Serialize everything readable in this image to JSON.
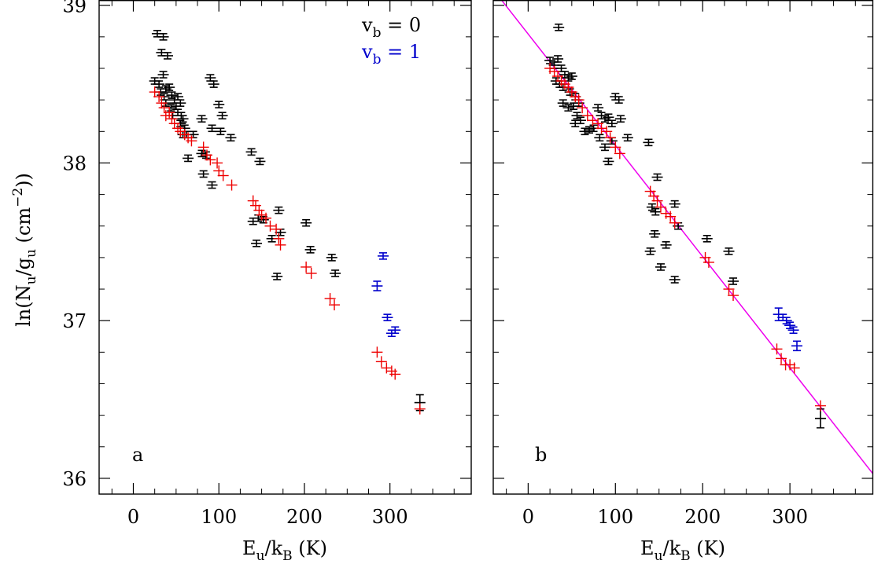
{
  "chart_data": {
    "type": "scatter",
    "panels": [
      {
        "tag": "a",
        "xlabel": "Eu/kB (K)",
        "ylabel": "ln(Nu/gu (cm−2))",
        "xlim": [
          -40,
          395
        ],
        "ylim": [
          35.9,
          39.03
        ],
        "xticks": [
          0,
          100,
          200,
          300
        ],
        "yticks": [
          36,
          37,
          38,
          39
        ],
        "legend": {
          "position": "top-right",
          "entries": [
            {
              "text": "vb = 0",
              "color": "#000000"
            },
            {
              "text": "vb = 1",
              "color": "#0000cc"
            }
          ]
        },
        "series": [
          {
            "color": "#000000",
            "points": [
              [
                28,
                38.82,
                0.01
              ],
              [
                35,
                38.8,
                0.01
              ],
              [
                33,
                38.7,
                0.01
              ],
              [
                40,
                38.68,
                0.01
              ],
              [
                25,
                38.52,
                0.01
              ],
              [
                30,
                38.5,
                0.01
              ],
              [
                35,
                38.56,
                0.01
              ],
              [
                38,
                38.47,
                0.01
              ],
              [
                42,
                38.48,
                0.01
              ],
              [
                32,
                38.45,
                0.01
              ],
              [
                36,
                38.42,
                0.01
              ],
              [
                45,
                38.43,
                0.01
              ],
              [
                48,
                38.4,
                0.01
              ],
              [
                52,
                38.42,
                0.01
              ],
              [
                55,
                38.38,
                0.01
              ],
              [
                38,
                38.38,
                0.01
              ],
              [
                44,
                38.35,
                0.01
              ],
              [
                50,
                38.36,
                0.01
              ],
              [
                46,
                38.3,
                0.01
              ],
              [
                52,
                38.32,
                0.01
              ],
              [
                56,
                38.3,
                0.01
              ],
              [
                58,
                38.28,
                0.01
              ],
              [
                55,
                38.25,
                0.01
              ],
              [
                60,
                38.22,
                0.01
              ],
              [
                62,
                38.18,
                0.01
              ],
              [
                70,
                38.18,
                0.01
              ],
              [
                58,
                38.18,
                0.01
              ],
              [
                64,
                38.03,
                0.01
              ],
              [
                80,
                38.28,
                0.01
              ],
              [
                90,
                38.54,
                0.01
              ],
              [
                94,
                38.5,
                0.01
              ],
              [
                100,
                38.37,
                0.01
              ],
              [
                104,
                38.3,
                0.01
              ],
              [
                92,
                38.22,
                0.01
              ],
              [
                102,
                38.2,
                0.01
              ],
              [
                114,
                38.16,
                0.01
              ],
              [
                80,
                38.06,
                0.01
              ],
              [
                85,
                38.05,
                0.01
              ],
              [
                82,
                37.93,
                0.01
              ],
              [
                92,
                37.86,
                0.01
              ],
              [
                138,
                38.07,
                0.01
              ],
              [
                148,
                38.01,
                0.01
              ],
              [
                140,
                37.63,
                0.01
              ],
              [
                146,
                37.65,
                0.01
              ],
              [
                152,
                37.64,
                0.01
              ],
              [
                144,
                37.49,
                0.01
              ],
              [
                162,
                37.52,
                0.01
              ],
              [
                170,
                37.7,
                0.01
              ],
              [
                168,
                37.28,
                0.01
              ],
              [
                172,
                37.56,
                0.01
              ],
              [
                202,
                37.62,
                0.01
              ],
              [
                207,
                37.45,
                0.01
              ],
              [
                232,
                37.4,
                0.01
              ],
              [
                236,
                37.3,
                0.01
              ],
              [
                335,
                36.48,
                0.04
              ]
            ]
          },
          {
            "color": "#0000cc",
            "points": [
              [
                285,
                37.22,
                0.02
              ],
              [
                292,
                37.41,
                0.01
              ],
              [
                297,
                37.02,
                0.01
              ],
              [
                302,
                36.92,
                0.01
              ],
              [
                306,
                36.94,
                0.01
              ]
            ]
          },
          {
            "color": "#ee0000",
            "points": [
              [
                25,
                38.45
              ],
              [
                30,
                38.42
              ],
              [
                33,
                38.38
              ],
              [
                36,
                38.35
              ],
              [
                38,
                38.3
              ],
              [
                42,
                38.32
              ],
              [
                45,
                38.28
              ],
              [
                48,
                38.25
              ],
              [
                52,
                38.22
              ],
              [
                55,
                38.2
              ],
              [
                60,
                38.18
              ],
              [
                64,
                38.16
              ],
              [
                68,
                38.14
              ],
              [
                82,
                38.1
              ],
              [
                86,
                38.05
              ],
              [
                90,
                38.02
              ],
              [
                98,
                38.0
              ],
              [
                100,
                37.95
              ],
              [
                105,
                37.92
              ],
              [
                115,
                37.86
              ],
              [
                140,
                37.76
              ],
              [
                143,
                37.73
              ],
              [
                147,
                37.7
              ],
              [
                150,
                37.67
              ],
              [
                155,
                37.65
              ],
              [
                160,
                37.6
              ],
              [
                167,
                37.58
              ],
              [
                170,
                37.52
              ],
              [
                172,
                37.48
              ],
              [
                202,
                37.34
              ],
              [
                208,
                37.3
              ],
              [
                230,
                37.14
              ],
              [
                235,
                37.1
              ],
              [
                285,
                36.8
              ],
              [
                290,
                36.74
              ],
              [
                296,
                36.7
              ],
              [
                302,
                36.68
              ],
              [
                306,
                36.66
              ],
              [
                335,
                36.44
              ]
            ]
          }
        ]
      },
      {
        "tag": "b",
        "xlabel": "Eu/kB (K)",
        "ylabel": "",
        "xlim": [
          -40,
          395
        ],
        "ylim": [
          35.9,
          39.03
        ],
        "xticks": [
          0,
          100,
          200,
          300
        ],
        "yticks": [
          36,
          37,
          38,
          39
        ],
        "fit_line": {
          "color": "#ee00ee",
          "x": [
            -40,
            395
          ],
          "y": [
            39.1,
            36.03
          ]
        },
        "series": [
          {
            "color": "#000000",
            "points": [
              [
                35,
                38.86,
                0.01
              ],
              [
                25,
                38.65,
                0.01
              ],
              [
                30,
                38.62,
                0.01
              ],
              [
                34,
                38.66,
                0.01
              ],
              [
                38,
                38.6,
                0.01
              ],
              [
                42,
                38.56,
                0.01
              ],
              [
                46,
                38.54,
                0.01
              ],
              [
                50,
                38.55,
                0.01
              ],
              [
                32,
                38.52,
                0.01
              ],
              [
                36,
                38.5,
                0.01
              ],
              [
                40,
                38.48,
                0.01
              ],
              [
                48,
                38.45,
                0.01
              ],
              [
                54,
                38.42,
                0.01
              ],
              [
                58,
                38.38,
                0.01
              ],
              [
                40,
                38.38,
                0.01
              ],
              [
                46,
                38.35,
                0.01
              ],
              [
                52,
                38.36,
                0.01
              ],
              [
                56,
                38.3,
                0.01
              ],
              [
                60,
                38.27,
                0.01
              ],
              [
                54,
                38.25,
                0.01
              ],
              [
                65,
                38.2,
                0.01
              ],
              [
                70,
                38.21,
                0.01
              ],
              [
                75,
                38.22,
                0.01
              ],
              [
                80,
                38.35,
                0.01
              ],
              [
                84,
                38.3,
                0.01
              ],
              [
                88,
                38.28,
                0.01
              ],
              [
                92,
                38.29,
                0.01
              ],
              [
                96,
                38.25,
                0.01
              ],
              [
                82,
                38.16,
                0.01
              ],
              [
                88,
                38.1,
                0.01
              ],
              [
                96,
                38.14,
                0.01
              ],
              [
                92,
                38.01,
                0.01
              ],
              [
                100,
                38.42,
                0.01
              ],
              [
                104,
                38.4,
                0.01
              ],
              [
                106,
                38.28,
                0.01
              ],
              [
                114,
                38.16,
                0.01
              ],
              [
                138,
                38.13,
                0.01
              ],
              [
                148,
                37.91,
                0.01
              ],
              [
                142,
                37.72,
                0.01
              ],
              [
                146,
                37.69,
                0.01
              ],
              [
                140,
                37.44,
                0.01
              ],
              [
                145,
                37.55,
                0.01
              ],
              [
                152,
                37.34,
                0.01
              ],
              [
                158,
                37.48,
                0.01
              ],
              [
                168,
                37.74,
                0.01
              ],
              [
                172,
                37.6,
                0.01
              ],
              [
                168,
                37.26,
                0.01
              ],
              [
                205,
                37.52,
                0.01
              ],
              [
                230,
                37.44,
                0.01
              ],
              [
                235,
                37.25,
                0.01
              ],
              [
                335,
                36.38,
                0.05
              ]
            ]
          },
          {
            "color": "#0000cc",
            "points": [
              [
                287,
                37.04,
                0.03
              ],
              [
                292,
                37.02,
                0.01
              ],
              [
                296,
                37.0,
                0.01
              ],
              [
                300,
                36.97,
                0.01
              ],
              [
                304,
                36.94,
                0.01
              ],
              [
                308,
                36.84,
                0.02
              ]
            ]
          },
          {
            "color": "#ee0000",
            "points": [
              [
                25,
                38.6
              ],
              [
                30,
                38.58
              ],
              [
                34,
                38.55
              ],
              [
                38,
                38.52
              ],
              [
                42,
                38.5
              ],
              [
                46,
                38.48
              ],
              [
                50,
                38.45
              ],
              [
                54,
                38.42
              ],
              [
                58,
                38.4
              ],
              [
                62,
                38.35
              ],
              [
                68,
                38.3
              ],
              [
                74,
                38.27
              ],
              [
                80,
                38.25
              ],
              [
                84,
                38.22
              ],
              [
                90,
                38.2
              ],
              [
                94,
                38.16
              ],
              [
                100,
                38.1
              ],
              [
                105,
                38.06
              ],
              [
                140,
                37.82
              ],
              [
                144,
                37.79
              ],
              [
                148,
                37.76
              ],
              [
                152,
                37.72
              ],
              [
                158,
                37.68
              ],
              [
                163,
                37.66
              ],
              [
                168,
                37.62
              ],
              [
                203,
                37.4
              ],
              [
                207,
                37.37
              ],
              [
                230,
                37.2
              ],
              [
                235,
                37.16
              ],
              [
                285,
                36.82
              ],
              [
                290,
                36.76
              ],
              [
                295,
                36.72
              ],
              [
                300,
                36.72
              ],
              [
                305,
                36.7
              ],
              [
                335,
                36.46
              ]
            ]
          }
        ]
      }
    ]
  }
}
